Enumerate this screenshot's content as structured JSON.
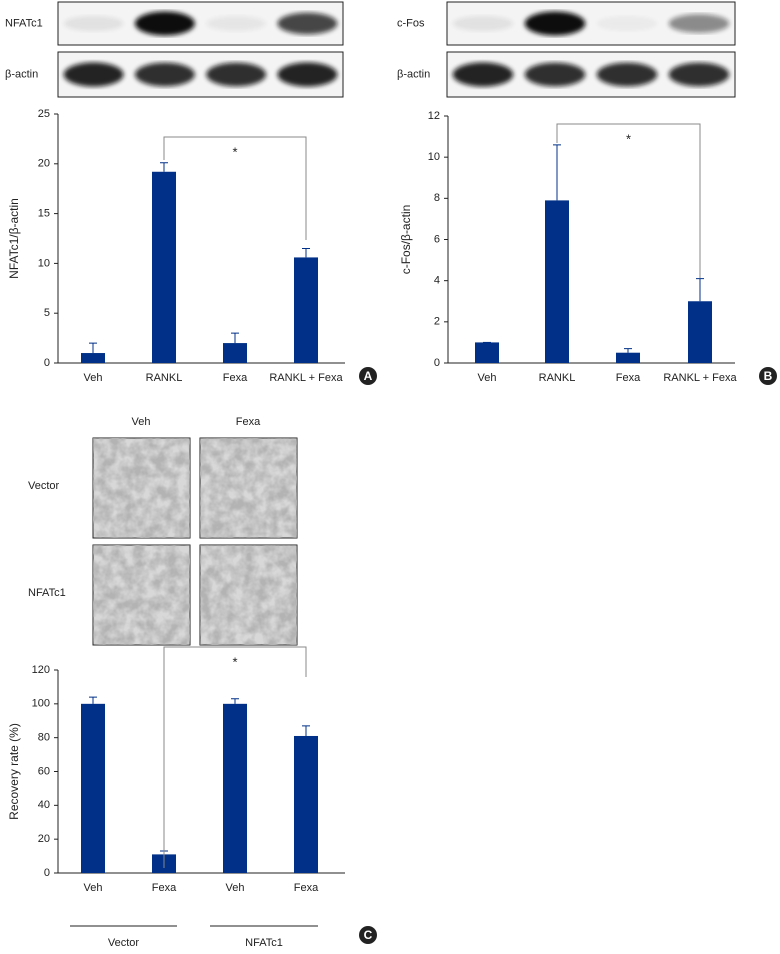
{
  "chart_data": [
    {
      "type": "bar",
      "panel": "A",
      "blots": [
        "NFATc1",
        "β-actin"
      ],
      "ylabel": "NFATc1/β-actin",
      "categories": [
        "Veh",
        "RANKL",
        "Fexa",
        "RANKL + Fexa"
      ],
      "values": [
        1,
        19.2,
        2,
        10.6
      ],
      "errors": [
        1,
        0.9,
        1,
        0.9
      ],
      "color": "#003087",
      "ylim": [
        0,
        25
      ],
      "yticks": [
        0,
        5,
        10,
        15,
        20,
        25
      ],
      "annotation": "*"
    },
    {
      "type": "bar",
      "panel": "B",
      "blots": [
        "c-Fos",
        "β-actin"
      ],
      "ylabel": "c-Fos/β-actin",
      "categories": [
        "Veh",
        "RANKL",
        "Fexa",
        "RANKL + Fexa"
      ],
      "values": [
        1,
        7.9,
        0.5,
        3.0
      ],
      "errors": [
        0,
        2.7,
        0.2,
        1.1
      ],
      "color": "#003087",
      "ylim": [
        0,
        12
      ],
      "yticks": [
        0,
        2,
        4,
        6,
        8,
        10,
        12
      ],
      "annotation": "*"
    },
    {
      "type": "bar",
      "panel": "C",
      "image_columns": [
        "Veh",
        "Fexa"
      ],
      "image_rows": [
        "Vector",
        "NFATc1"
      ],
      "ylabel": "Recovery rate (%)",
      "categories": [
        "Veh",
        "Fexa",
        "Veh",
        "Fexa"
      ],
      "groups": [
        "Vector",
        "NFATc1"
      ],
      "values": [
        100,
        11,
        100,
        81
      ],
      "errors": [
        4,
        2,
        3,
        6
      ],
      "color": "#003087",
      "ylim": [
        0,
        120
      ],
      "yticks": [
        0,
        20,
        40,
        60,
        80,
        100,
        120
      ],
      "annotation": "*"
    }
  ]
}
